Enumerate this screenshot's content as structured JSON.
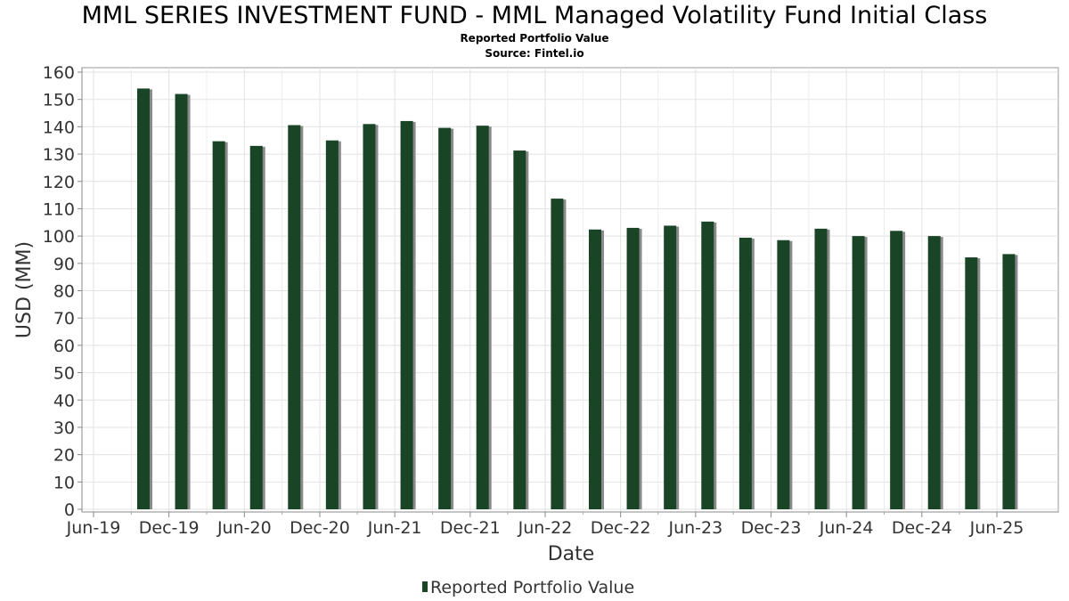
{
  "chart_data": {
    "type": "bar",
    "title": "MML SERIES INVESTMENT FUND - MML Managed Volatility Fund Initial Class",
    "subtitle": "Reported Portfolio Value",
    "source": "Source: Fintel.io",
    "xlabel": "Date",
    "ylabel": "USD (MM)",
    "ylim": [
      0,
      160
    ],
    "y_ticks": [
      0,
      10,
      20,
      30,
      40,
      50,
      60,
      70,
      80,
      90,
      100,
      110,
      120,
      130,
      140,
      150,
      160
    ],
    "x_range": [
      "2019-06-01",
      "2025-09-30"
    ],
    "x_ticks": [
      {
        "label": "Jun-19",
        "date": "2019-06-01"
      },
      {
        "label": "Dec-19",
        "date": "2019-12-01"
      },
      {
        "label": "Jun-20",
        "date": "2020-06-01"
      },
      {
        "label": "Dec-20",
        "date": "2020-12-01"
      },
      {
        "label": "Jun-21",
        "date": "2021-06-01"
      },
      {
        "label": "Dec-21",
        "date": "2021-12-01"
      },
      {
        "label": "Jun-22",
        "date": "2022-06-01"
      },
      {
        "label": "Dec-22",
        "date": "2022-12-01"
      },
      {
        "label": "Jun-23",
        "date": "2023-06-01"
      },
      {
        "label": "Dec-23",
        "date": "2023-12-01"
      },
      {
        "label": "Jun-24",
        "date": "2024-06-01"
      },
      {
        "label": "Dec-24",
        "date": "2024-12-01"
      },
      {
        "label": "Jun-25",
        "date": "2025-06-01"
      }
    ],
    "grid": true,
    "legend_position": "bottom",
    "bar_color": "#1a4426",
    "shadow_color": "#8a8a8a",
    "series": [
      {
        "name": "Reported Portfolio Value",
        "points": [
          {
            "date": "2019-09-30",
            "value": 154
          },
          {
            "date": "2019-12-31",
            "value": 152
          },
          {
            "date": "2020-03-31",
            "value": 134.7
          },
          {
            "date": "2020-06-30",
            "value": 133
          },
          {
            "date": "2020-09-30",
            "value": 140.6
          },
          {
            "date": "2020-12-31",
            "value": 135
          },
          {
            "date": "2021-03-31",
            "value": 141
          },
          {
            "date": "2021-06-30",
            "value": 142.1
          },
          {
            "date": "2021-09-30",
            "value": 139.6
          },
          {
            "date": "2021-12-31",
            "value": 140.4
          },
          {
            "date": "2022-03-31",
            "value": 131.3
          },
          {
            "date": "2022-06-30",
            "value": 113.7
          },
          {
            "date": "2022-09-30",
            "value": 102.4
          },
          {
            "date": "2022-12-31",
            "value": 103
          },
          {
            "date": "2023-03-31",
            "value": 103.8
          },
          {
            "date": "2023-06-30",
            "value": 105.3
          },
          {
            "date": "2023-09-30",
            "value": 99.4
          },
          {
            "date": "2023-12-31",
            "value": 98.5
          },
          {
            "date": "2024-03-31",
            "value": 102.7
          },
          {
            "date": "2024-06-30",
            "value": 100
          },
          {
            "date": "2024-09-30",
            "value": 101.9
          },
          {
            "date": "2024-12-31",
            "value": 100
          },
          {
            "date": "2025-03-31",
            "value": 92.2
          },
          {
            "date": "2025-06-30",
            "value": 93.4
          }
        ]
      }
    ]
  }
}
